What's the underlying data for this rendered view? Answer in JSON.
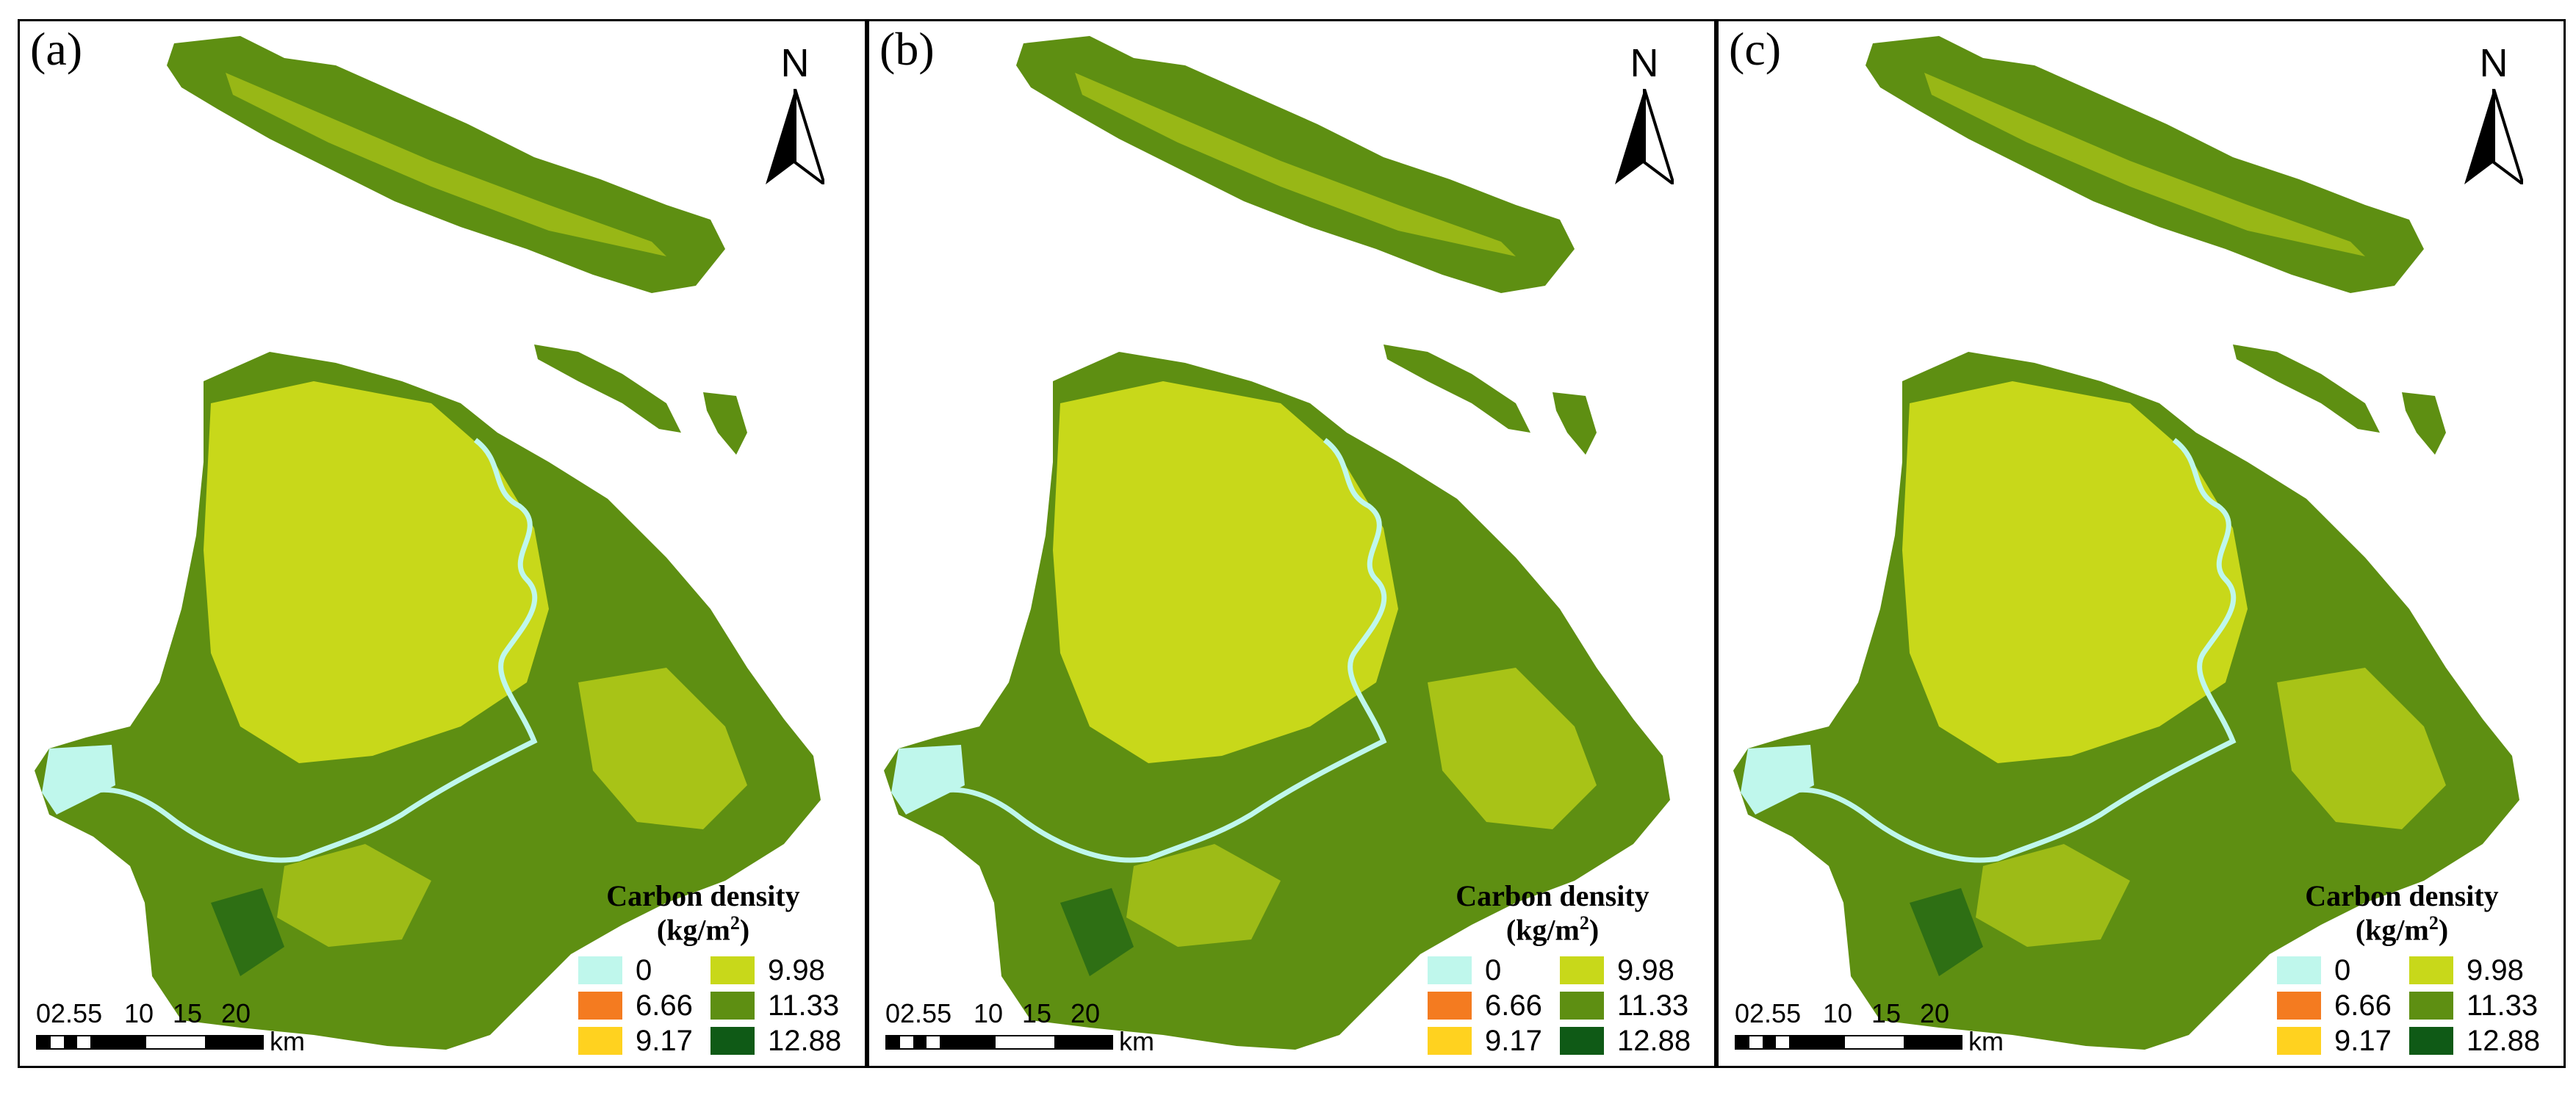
{
  "panels": [
    {
      "label": "(a)"
    },
    {
      "label": "(b)"
    },
    {
      "label": "(c)"
    }
  ],
  "north_label": "N",
  "legend": {
    "title": "Carbon density",
    "unit_prefix": "(kg/m",
    "unit_sup": "2",
    "unit_suffix": ")",
    "items": [
      {
        "value": "0",
        "color": "#bff7ec"
      },
      {
        "value": "6.66",
        "color": "#f47b20"
      },
      {
        "value": "9.17",
        "color": "#ffd21f"
      },
      {
        "value": "9.98",
        "color": "#c8d81a"
      },
      {
        "value": "11.33",
        "color": "#5e8f12"
      },
      {
        "value": "12.88",
        "color": "#0f5a16"
      }
    ]
  },
  "scale_bar": {
    "ticks": [
      "02.55",
      "10",
      "15",
      "20"
    ],
    "unit": "km"
  },
  "colors": {
    "water": "#bff7ec",
    "main_land": "#5e8f12",
    "urban": "#c8d81a",
    "forest": "#0f5a16",
    "river": "#bff7ec"
  }
}
